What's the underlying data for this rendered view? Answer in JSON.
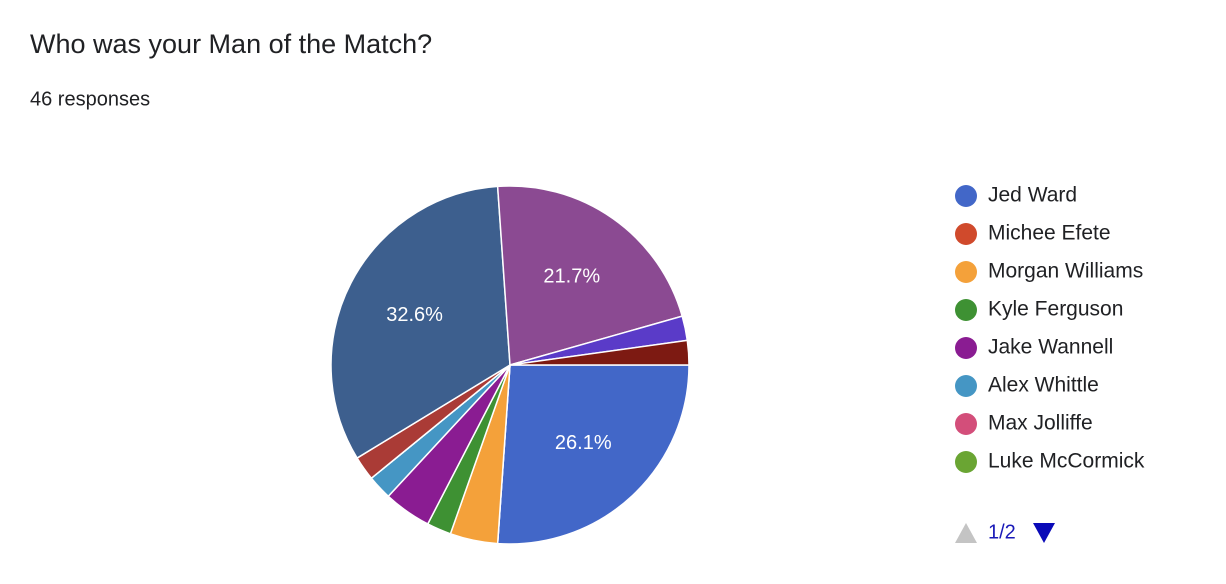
{
  "chart_data": {
    "type": "pie",
    "title": "Who was your Man of the Match?",
    "subtitle": "46 responses",
    "categories": [
      "Jed Ward",
      "Michee Efete",
      "Morgan Williams",
      "Kyle Ferguson",
      "Jake Wannell",
      "Alex Whittle",
      "Max Jolliffe",
      "Luke McCormick",
      null,
      null,
      null,
      null,
      null
    ],
    "values": [
      26.1,
      0,
      4.3,
      2.2,
      4.3,
      2.2,
      0,
      0,
      2.2,
      32.6,
      21.7,
      2.2,
      2.2
    ],
    "value_labels": [
      "26.1%",
      null,
      null,
      null,
      null,
      null,
      null,
      null,
      null,
      "32.6%",
      "21.7%",
      null,
      null
    ],
    "colors": [
      "#4267c8",
      "#d04a2c",
      "#f4a13a",
      "#3e9133",
      "#8a1c92",
      "#4596c4",
      "#d34e7a",
      "#6aa533",
      "#aa3b36",
      "#3d5f8e",
      "#8b4a92",
      "#5a3bc8",
      "#7d1a12"
    ],
    "legend_page": "1/2"
  }
}
